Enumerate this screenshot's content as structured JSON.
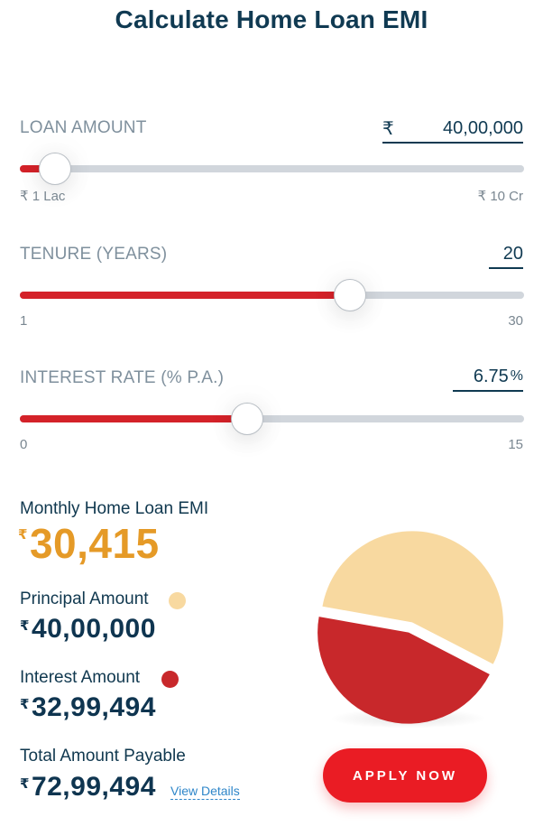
{
  "title": "Calculate Home Loan EMI",
  "loan_amount": {
    "label": "LOAN AMOUNT",
    "currency": "₹",
    "value": "40,00,000",
    "min_label": "₹ 1 Lac",
    "max_label": "₹ 10 Cr",
    "slider_fraction": 0.069
  },
  "tenure": {
    "label": "TENURE (YEARS)",
    "value": "20",
    "min_label": "1",
    "max_label": "30",
    "slider_fraction": 0.655
  },
  "interest_rate": {
    "label": "INTEREST RATE (% P.A.)",
    "value": "6.75",
    "unit": "%",
    "min_label": "0",
    "max_label": "15",
    "slider_fraction": 0.45
  },
  "results": {
    "currency": "₹",
    "emi_label": "Monthly Home Loan EMI",
    "emi_value": "30,415",
    "principal_label": "Principal Amount",
    "principal_value": "40,00,000",
    "interest_label": "Interest Amount",
    "interest_value": "32,99,494",
    "total_label": "Total Amount Payable",
    "total_value": "72,99,494",
    "view_details": "View Details"
  },
  "chart_data": {
    "type": "pie",
    "slices": [
      {
        "value": 4000000,
        "color": "#f8d9a0"
      },
      {
        "value": 3299494,
        "color": "#c8282b"
      }
    ]
  },
  "colors": {
    "accent_red": "#d42229",
    "emi_orange": "#e59a27",
    "principal": "#f8d9a0",
    "interest": "#c8282b",
    "button": "#ea1c24"
  },
  "apply_button": {
    "label": "APPLY NOW"
  }
}
